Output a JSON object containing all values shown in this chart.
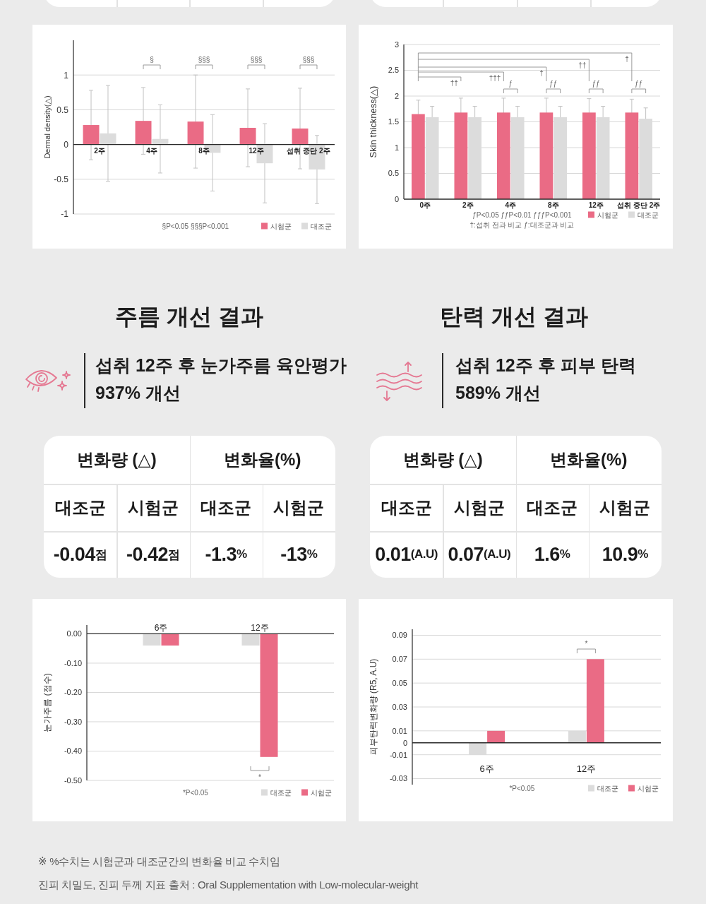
{
  "chart_data": [
    {
      "type": "bar",
      "ylabel": "Dermal density(△)",
      "categories": [
        "2주",
        "4주",
        "8주",
        "12주",
        "섭취 중단 2주"
      ],
      "series": [
        {
          "name": "시험군",
          "color": "#ea6b85",
          "values": [
            0.28,
            0.34,
            0.33,
            0.24,
            0.23
          ],
          "errors": [
            0.5,
            0.48,
            0.67,
            0.56,
            0.58
          ]
        },
        {
          "name": "대조군",
          "color": "#dcdcdc",
          "values": [
            0.16,
            0.08,
            -0.12,
            -0.27,
            -0.36
          ],
          "errors": [
            0.69,
            0.49,
            0.55,
            0.57,
            0.49
          ]
        }
      ],
      "ylim": [
        -1,
        1.5
      ],
      "yticks": [
        -1,
        -0.5,
        0,
        0.5,
        1
      ],
      "grid": "y",
      "legend": "bottom right",
      "annotations": [
        "§",
        "§§§",
        "§§§",
        "§§§",
        "§P<0.05 §§§P<0.001"
      ]
    },
    {
      "type": "bar",
      "ylabel": "Skin thickness(△)",
      "categories": [
        "0주",
        "2주",
        "4주",
        "8주",
        "12주",
        "섭취 중단 2주"
      ],
      "series": [
        {
          "name": "시험군",
          "color": "#ea6b85",
          "values": [
            1.65,
            1.68,
            1.68,
            1.68,
            1.68,
            1.68
          ],
          "errors": [
            0.27,
            0.28,
            0.28,
            0.28,
            0.27,
            0.26
          ]
        },
        {
          "name": "대조군",
          "color": "#dcdcdc",
          "values": [
            1.59,
            1.59,
            1.59,
            1.59,
            1.59,
            1.56
          ],
          "errors": [
            0.21,
            0.21,
            0.21,
            0.21,
            0.21,
            0.21
          ]
        }
      ],
      "ylim": [
        0,
        3
      ],
      "yticks": [
        0,
        0.5,
        1,
        1.5,
        2,
        2.5,
        3
      ],
      "grid": "y",
      "legend": "bottom right",
      "annotations": [
        "††",
        "†††",
        "†",
        "††",
        "†",
        "ƒ",
        "ƒƒ",
        "ƒƒ",
        "ƒƒ",
        "ƒP<0.05 ƒƒP<0.01 ƒƒƒP<0.001",
        "†:섭취 전과 비교 ƒ:대조군과 비교"
      ]
    },
    {
      "type": "other",
      "title": "주름 개선 결과",
      "subtitle": "섭취 12주 후 눈가주름 육안평가\n937% 개선",
      "annotations": [
        "변화량 (△)",
        "변화율(%)",
        "대조군",
        "시험군",
        "대조군",
        "시험군",
        "-0.04점",
        "-0.42점",
        "-1.3%",
        "-13%"
      ]
    },
    {
      "type": "other",
      "title": "탄력 개선 결과",
      "subtitle": "섭취 12주 후 피부 탄력\n589% 개선",
      "annotations": [
        "변화량 (△)",
        "변화율(%)",
        "대조군",
        "시험군",
        "대조군",
        "시험군",
        "0.01(A.U)",
        "0.07(A.U)",
        "1.6%",
        "10.9%"
      ]
    },
    {
      "type": "bar",
      "ylabel": "눈가주름 (점수)",
      "categories": [
        "6주",
        "12주"
      ],
      "series": [
        {
          "name": "대조군",
          "color": "#dcdcdc",
          "values": [
            -0.04,
            -0.04
          ]
        },
        {
          "name": "시험군",
          "color": "#ea6b85",
          "values": [
            -0.04,
            -0.42
          ]
        }
      ],
      "ylim": [
        -0.5,
        0.03
      ],
      "yticks": [
        {
          "value": 0,
          "label": "0.00"
        },
        {
          "value": -0.1,
          "label": "-0.10"
        },
        {
          "value": -0.2,
          "label": "-0.20"
        },
        {
          "value": -0.3,
          "label": "-0.30"
        },
        {
          "value": -0.4,
          "label": "-0.40"
        },
        {
          "value": -0.5,
          "label": "-0.50"
        }
      ],
      "grid": "y",
      "legend": "bottom right",
      "annotations": [
        "*",
        "*P<0.05"
      ]
    },
    {
      "type": "bar",
      "ylabel": "피부탄력변화량 (R5, A.U)",
      "categories": [
        "6주",
        "12주"
      ],
      "series": [
        {
          "name": "대조군",
          "color": "#dcdcdc",
          "values": [
            -0.01,
            0.01
          ]
        },
        {
          "name": "시험군",
          "color": "#ea6b85",
          "values": [
            0.01,
            0.07
          ]
        }
      ],
      "ylim": [
        -0.035,
        0.095
      ],
      "yticks": [
        -0.03,
        -0.01,
        0,
        0.01,
        0.03,
        0.05,
        0.07,
        0.09
      ],
      "grid": "y",
      "legend": "bottom right",
      "annotations": [
        "*",
        "*P<0.05"
      ]
    },
    {
      "type": "other",
      "annotations": [
        "※ %수치는 시험군과 대조군간의 변화율 비교 수치임",
        "진피 치밀도, 진피 두께 지표 출처 : Oral Supplementation with Low-molecular-weight"
      ]
    }
  ]
}
